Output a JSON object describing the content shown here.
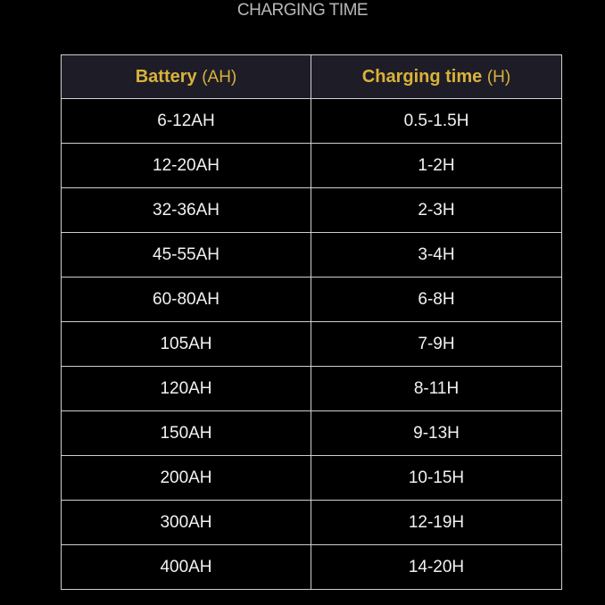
{
  "title": "CHARGING TIME",
  "headers": [
    {
      "label": "Battery",
      "unit": "(AH)"
    },
    {
      "label": "Charging time",
      "unit": "(H)"
    }
  ],
  "rows": [
    [
      "6-12AH",
      "0.5-1.5H"
    ],
    [
      "12-20AH",
      "1-2H"
    ],
    [
      "32-36AH",
      "2-3H"
    ],
    [
      "45-55AH",
      "3-4H"
    ],
    [
      "60-80AH",
      "6-8H"
    ],
    [
      "105AH",
      "7-9H"
    ],
    [
      "120AH",
      "8-11H"
    ],
    [
      "150AH",
      "9-13H"
    ],
    [
      "200AH",
      "10-15H"
    ],
    [
      "300AH",
      "12-19H"
    ],
    [
      "400AH",
      "14-20H"
    ]
  ],
  "colors": {
    "header_text": "#d9b23a",
    "header_bg": "#1e1d27",
    "background": "#000000"
  }
}
